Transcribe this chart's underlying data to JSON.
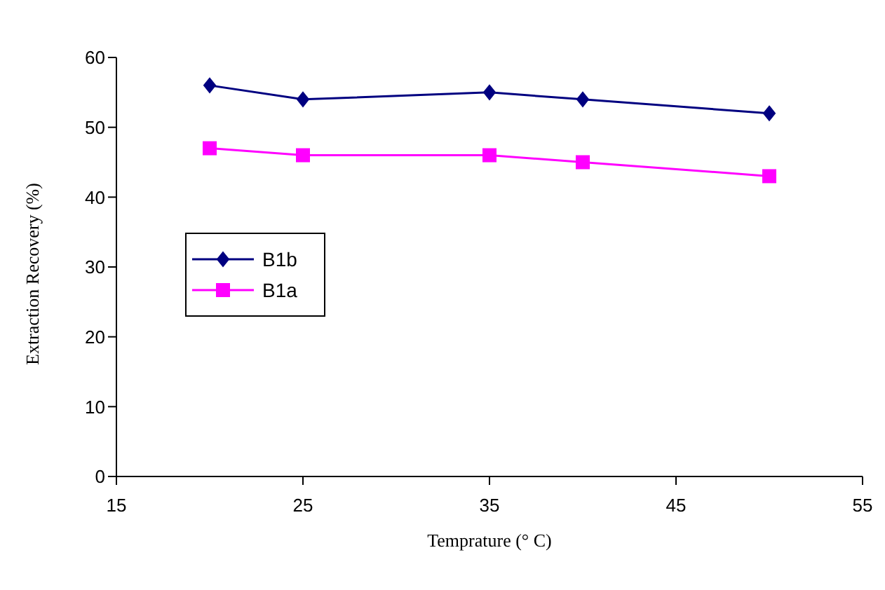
{
  "chart_data": {
    "type": "line",
    "xlabel": "Temprature (° C)",
    "ylabel": "Extraction Recovery (%)",
    "x": [
      20,
      25,
      35,
      40,
      50
    ],
    "series": [
      {
        "name": "B1b",
        "color": "#000080",
        "marker": "diamond",
        "values": [
          56,
          54,
          55,
          54,
          52
        ]
      },
      {
        "name": "B1a",
        "color": "#ff00ff",
        "marker": "square",
        "values": [
          47,
          46,
          46,
          45,
          43
        ]
      }
    ],
    "xlim": [
      15,
      55
    ],
    "xticks": [
      15,
      25,
      35,
      45,
      55
    ],
    "ylim": [
      0,
      60
    ],
    "yticks": [
      0,
      10,
      20,
      30,
      40,
      50,
      60
    ],
    "grid": false,
    "legend": "left",
    "line_style": "solid"
  }
}
